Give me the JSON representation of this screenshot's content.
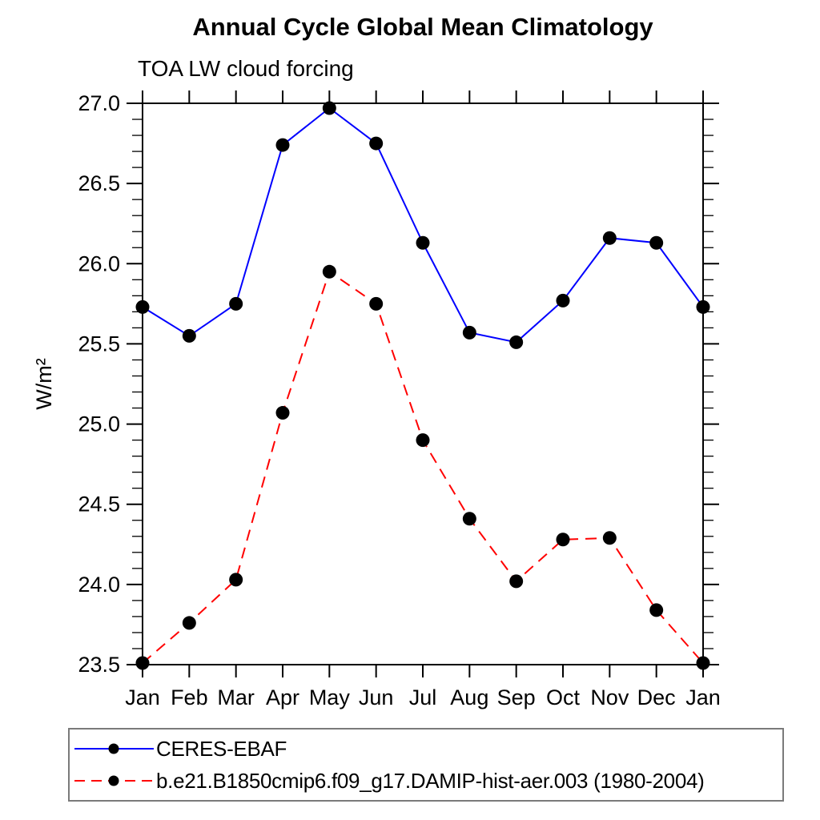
{
  "page": {
    "background_color": "#ffffff",
    "text_color": "#000000"
  },
  "chart_data": {
    "type": "line",
    "title": "Annual Cycle Global Mean Climatology",
    "subtitle": "TOA LW cloud forcing",
    "ylabel": "W/m²",
    "xlabel": "",
    "categories": [
      "Jan",
      "Feb",
      "Mar",
      "Apr",
      "May",
      "Jun",
      "Jul",
      "Aug",
      "Sep",
      "Oct",
      "Nov",
      "Dec",
      "Jan"
    ],
    "ylim": [
      23.5,
      27.0
    ],
    "ytick_major_interval": 0.5,
    "ytick_minor_interval": 0.1,
    "ytick_labels": [
      "23.5",
      "24.0",
      "24.5",
      "25.0",
      "25.5",
      "26.0",
      "26.5",
      "27.0"
    ],
    "grid": false,
    "frame_color": "#000000",
    "legend_position": "bottom-left",
    "series": [
      {
        "name": "CERES-EBAF",
        "color": "#0000ff",
        "line_style": "solid",
        "marker": "filled-circle",
        "marker_color": "#000000",
        "values": [
          25.73,
          25.55,
          25.75,
          26.74,
          26.97,
          26.75,
          26.13,
          25.57,
          25.51,
          25.77,
          26.16,
          26.13,
          25.73
        ]
      },
      {
        "name": "b.e21.B1850cmip6.f09_g17.DAMIP-hist-aer.003 (1980-2004)",
        "color": "#ff0000",
        "line_style": "dashed",
        "marker": "filled-circle",
        "marker_color": "#000000",
        "values": [
          23.51,
          23.76,
          24.03,
          25.07,
          25.95,
          25.75,
          24.9,
          24.41,
          24.02,
          24.28,
          24.29,
          23.84,
          23.51
        ]
      }
    ]
  }
}
